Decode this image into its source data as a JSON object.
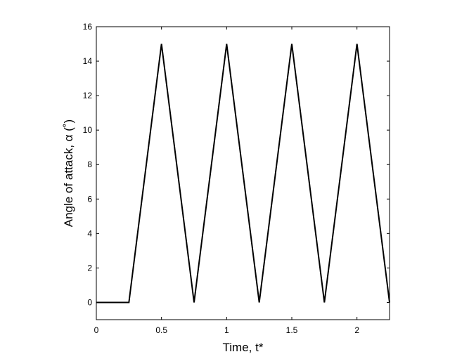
{
  "chart_data": {
    "type": "line",
    "xlabel": "Time, t*",
    "ylabel": "Angle of attack, α (˚)",
    "xlim": [
      0,
      2.25
    ],
    "ylim": [
      -1,
      16
    ],
    "xticks": [
      0,
      0.5,
      1,
      1.5,
      2
    ],
    "xtick_labels": [
      "0",
      "0.5",
      "1",
      "1.5",
      "2"
    ],
    "yticks": [
      0,
      2,
      4,
      6,
      8,
      10,
      12,
      14,
      16
    ],
    "ytick_labels": [
      "0",
      "2",
      "4",
      "6",
      "8",
      "10",
      "12",
      "14",
      "16"
    ],
    "grid": false,
    "line_color": "#000000",
    "series": [
      {
        "x": [
          0,
          0.25,
          0.5,
          0.75,
          1.0,
          1.25,
          1.5,
          1.75,
          2.0,
          2.25
        ],
        "y": [
          0,
          0,
          15,
          0,
          15,
          0,
          15,
          0,
          15,
          0
        ]
      }
    ]
  }
}
